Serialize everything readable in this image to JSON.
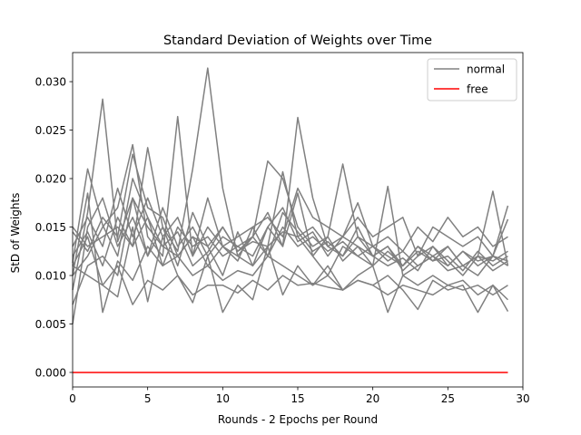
{
  "chart_data": {
    "type": "line",
    "title": "Standard Deviation of Weights over Time",
    "xlabel": "Rounds - 2 Epochs per Round",
    "ylabel": "StD of Weights",
    "xlim": [
      0,
      30
    ],
    "ylim": [
      -0.0015,
      0.033
    ],
    "xticks": [
      0,
      5,
      10,
      15,
      20,
      25,
      30
    ],
    "xtick_labels": [
      "0",
      "5",
      "10",
      "15",
      "20",
      "25",
      "30"
    ],
    "yticks": [
      0.0,
      0.005,
      0.01,
      0.015,
      0.02,
      0.025,
      0.03
    ],
    "ytick_labels": [
      "0.000",
      "0.005",
      "0.010",
      "0.015",
      "0.020",
      "0.025",
      "0.030"
    ],
    "grid": false,
    "legend": {
      "placement": "top-right",
      "entries": [
        {
          "label": "normal",
          "color": "#808080"
        },
        {
          "label": "free",
          "color": "#ff0000"
        }
      ]
    },
    "x": [
      0,
      1,
      2,
      3,
      4,
      5,
      6,
      7,
      8,
      9,
      10,
      11,
      12,
      13,
      14,
      15,
      16,
      17,
      18,
      19,
      20,
      21,
      22,
      23,
      24,
      25,
      26,
      27,
      28,
      29
    ],
    "series": [
      {
        "name": "normal",
        "color": "#808080",
        "values": [
          0.0113,
          0.021,
          0.0152,
          0.012,
          0.02,
          0.016,
          0.013,
          0.0145,
          0.011,
          0.0124,
          0.015,
          0.0125,
          0.014,
          0.0165,
          0.013,
          0.0185,
          0.012,
          0.014,
          0.0115,
          0.013,
          0.012,
          0.011,
          0.0118,
          0.0105,
          0.013,
          0.0115,
          0.01,
          0.012,
          0.0105,
          0.0115
        ]
      },
      {
        "name": "normal",
        "color": "#808080",
        "values": [
          0.0085,
          0.0165,
          0.0282,
          0.0135,
          0.018,
          0.012,
          0.015,
          0.011,
          0.0165,
          0.013,
          0.01,
          0.0145,
          0.011,
          0.015,
          0.017,
          0.0135,
          0.0145,
          0.012,
          0.014,
          0.013,
          0.011,
          0.0125,
          0.011,
          0.013,
          0.0115,
          0.012,
          0.0105,
          0.0125,
          0.011,
          0.012
        ]
      },
      {
        "name": "normal",
        "color": "#808080",
        "values": [
          0.01,
          0.012,
          0.015,
          0.017,
          0.0235,
          0.014,
          0.012,
          0.0264,
          0.012,
          0.018,
          0.013,
          0.0115,
          0.015,
          0.012,
          0.0165,
          0.0145,
          0.0125,
          0.0135,
          0.012,
          0.015,
          0.012,
          0.013,
          0.0105,
          0.012,
          0.013,
          0.011,
          0.0125,
          0.0115,
          0.012,
          0.011
        ]
      },
      {
        "name": "normal",
        "color": "#808080",
        "values": [
          0.012,
          0.0145,
          0.011,
          0.016,
          0.013,
          0.0232,
          0.015,
          0.0125,
          0.021,
          0.0314,
          0.019,
          0.012,
          0.014,
          0.012,
          0.015,
          0.013,
          0.014,
          0.0125,
          0.0135,
          0.012,
          0.013,
          0.0115,
          0.0125,
          0.011,
          0.012,
          0.013,
          0.011,
          0.012,
          0.0115,
          0.0125
        ]
      },
      {
        "name": "normal",
        "color": "#808080",
        "values": [
          0.005,
          0.015,
          0.018,
          0.013,
          0.016,
          0.012,
          0.017,
          0.013,
          0.015,
          0.012,
          0.014,
          0.013,
          0.012,
          0.015,
          0.013,
          0.0263,
          0.018,
          0.013,
          0.012,
          0.014,
          0.013,
          0.012,
          0.011,
          0.013,
          0.012,
          0.011,
          0.0125,
          0.011,
          0.012,
          0.0115
        ]
      },
      {
        "name": "normal",
        "color": "#808080",
        "values": [
          0.015,
          0.013,
          0.014,
          0.015,
          0.013,
          0.016,
          0.011,
          0.015,
          0.013,
          0.014,
          0.012,
          0.013,
          0.014,
          0.0218,
          0.02,
          0.015,
          0.013,
          0.014,
          0.0215,
          0.014,
          0.012,
          0.013,
          0.011,
          0.0125,
          0.0115,
          0.013,
          0.011,
          0.012,
          0.0187,
          0.011
        ]
      },
      {
        "name": "normal",
        "color": "#808080",
        "values": [
          0.007,
          0.011,
          0.012,
          0.01,
          0.018,
          0.015,
          0.013,
          0.012,
          0.014,
          0.011,
          0.013,
          0.012,
          0.011,
          0.013,
          0.0207,
          0.014,
          0.012,
          0.01,
          0.013,
          0.012,
          0.011,
          0.0192,
          0.01,
          0.011,
          0.012,
          0.0105,
          0.011,
          0.01,
          0.012,
          0.0172
        ]
      },
      {
        "name": "normal",
        "color": "#808080",
        "values": [
          0.01,
          0.0185,
          0.0062,
          0.0115,
          0.0095,
          0.013,
          0.011,
          0.012,
          0.01,
          0.011,
          0.0095,
          0.0105,
          0.01,
          0.012,
          0.011,
          0.01,
          0.009,
          0.011,
          0.0085,
          0.01,
          0.011,
          0.0062,
          0.01,
          0.009,
          0.01,
          0.009,
          0.0095,
          0.008,
          0.009,
          0.0075
        ]
      },
      {
        "name": "normal",
        "color": "#808080",
        "values": [
          0.011,
          0.014,
          0.009,
          0.0078,
          0.015,
          0.0073,
          0.014,
          0.01,
          0.0072,
          0.012,
          0.0062,
          0.009,
          0.0075,
          0.013,
          0.008,
          0.011,
          0.009,
          0.01,
          0.0085,
          0.0095,
          0.009,
          0.01,
          0.0085,
          0.0065,
          0.0095,
          0.0085,
          0.009,
          0.0062,
          0.009,
          0.0063
        ]
      },
      {
        "name": "normal",
        "color": "#808080",
        "values": [
          0.013,
          0.016,
          0.013,
          0.019,
          0.014,
          0.018,
          0.014,
          0.016,
          0.012,
          0.015,
          0.013,
          0.014,
          0.015,
          0.016,
          0.014,
          0.019,
          0.016,
          0.015,
          0.014,
          0.016,
          0.014,
          0.015,
          0.016,
          0.012,
          0.015,
          0.014,
          0.013,
          0.014,
          0.012,
          0.0158
        ]
      },
      {
        "name": "normal",
        "color": "#808080",
        "values": [
          0.011,
          0.01,
          0.009,
          0.011,
          0.007,
          0.0095,
          0.0085,
          0.01,
          0.008,
          0.009,
          0.009,
          0.0082,
          0.0095,
          0.0085,
          0.01,
          0.009,
          0.0092,
          0.0088,
          0.0085,
          0.0095,
          0.009,
          0.008,
          0.009,
          0.0085,
          0.008,
          0.009,
          0.0085,
          0.009,
          0.008,
          0.009
        ]
      },
      {
        "name": "normal",
        "color": "#808080",
        "values": [
          0.0145,
          0.0125,
          0.016,
          0.014,
          0.0225,
          0.017,
          0.016,
          0.012,
          0.014,
          0.013,
          0.015,
          0.0125,
          0.0135,
          0.013,
          0.0145,
          0.014,
          0.015,
          0.013,
          0.014,
          0.0175,
          0.013,
          0.014,
          0.0125,
          0.015,
          0.0135,
          0.016,
          0.014,
          0.015,
          0.013,
          0.014
        ]
      }
    ],
    "free": {
      "name": "free",
      "color": "#ff0000",
      "values": [
        0,
        0,
        0,
        0,
        0,
        0,
        0,
        0,
        0,
        0,
        0,
        0,
        0,
        0,
        0,
        0,
        0,
        0,
        0,
        0,
        0,
        0,
        0,
        0,
        0,
        0,
        0,
        0,
        0,
        0
      ]
    }
  }
}
